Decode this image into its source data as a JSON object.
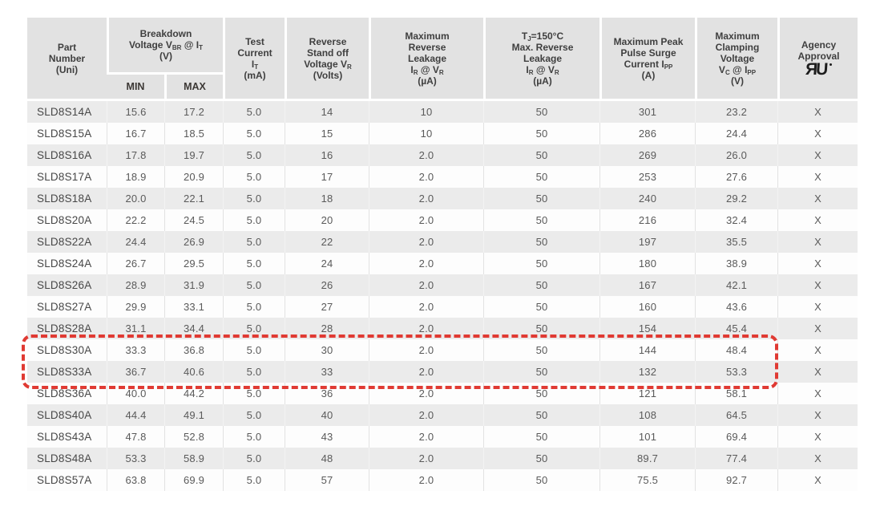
{
  "table": {
    "column_ids": [
      "part",
      "min",
      "max",
      "test",
      "standoff",
      "leak",
      "leak150",
      "surge",
      "clamp",
      "agency"
    ],
    "header": {
      "part": [
        [
          {
            "t": "Part"
          }
        ],
        [
          {
            "t": "Number"
          }
        ],
        [
          {
            "t": "(Uni)"
          }
        ]
      ],
      "breakdown": [
        [
          {
            "t": "Breakdown"
          }
        ],
        [
          {
            "t": "Voltage V"
          },
          {
            "t": "BR",
            "sub": true
          },
          {
            "t": " @ I"
          },
          {
            "t": "T",
            "sub": true
          }
        ],
        [
          {
            "t": "(V)"
          }
        ]
      ],
      "min": "MIN",
      "max": "MAX",
      "test": [
        [
          {
            "t": "Test"
          }
        ],
        [
          {
            "t": "Current"
          }
        ],
        [
          {
            "t": "I"
          },
          {
            "t": "T",
            "sub": true
          }
        ],
        [
          {
            "t": "(mA)"
          }
        ]
      ],
      "standoff": [
        [
          {
            "t": "Reverse"
          }
        ],
        [
          {
            "t": "Stand off"
          }
        ],
        [
          {
            "t": "Voltage V"
          },
          {
            "t": "R",
            "sub": true
          }
        ],
        [
          {
            "t": "(Volts)"
          }
        ]
      ],
      "leak": [
        [
          {
            "t": "Maximum"
          }
        ],
        [
          {
            "t": "Reverse"
          }
        ],
        [
          {
            "t": "Leakage"
          }
        ],
        [
          {
            "t": "I"
          },
          {
            "t": "R",
            "sub": true
          },
          {
            "t": " @ V"
          },
          {
            "t": "R",
            "sub": true
          }
        ],
        [
          {
            "t": "(µA)"
          }
        ]
      ],
      "leak150": [
        [
          {
            "t": "T"
          },
          {
            "t": "J",
            "sub": true
          },
          {
            "t": "=150°C"
          }
        ],
        [
          {
            "t": "Max. Reverse"
          }
        ],
        [
          {
            "t": "Leakage"
          }
        ],
        [
          {
            "t": "I"
          },
          {
            "t": "R",
            "sub": true
          },
          {
            "t": " @ V"
          },
          {
            "t": "R",
            "sub": true
          }
        ],
        [
          {
            "t": "(µA)"
          }
        ]
      ],
      "surge": [
        [
          {
            "t": "Maximum Peak"
          }
        ],
        [
          {
            "t": "Pulse Surge"
          }
        ],
        [
          {
            "t": "Current I"
          },
          {
            "t": "PP",
            "sub": true
          }
        ],
        [
          {
            "t": "(A)"
          }
        ]
      ],
      "clamp": [
        [
          {
            "t": "Maximum"
          }
        ],
        [
          {
            "t": "Clamping"
          }
        ],
        [
          {
            "t": "Voltage"
          }
        ],
        [
          {
            "t": "V"
          },
          {
            "t": "C",
            "sub": true
          },
          {
            "t": " @ I"
          },
          {
            "t": "PP",
            "sub": true
          }
        ],
        [
          {
            "t": "(V)"
          }
        ]
      ],
      "agency": [
        [
          {
            "t": "Agency"
          }
        ],
        [
          {
            "t": "Approval"
          }
        ]
      ],
      "agency_logo": "ЯU"
    },
    "rows": [
      [
        "SLD8S14A",
        "15.6",
        "17.2",
        "5.0",
        "14",
        "10",
        "50",
        "301",
        "23.2",
        "X"
      ],
      [
        "SLD8S15A",
        "16.7",
        "18.5",
        "5.0",
        "15",
        "10",
        "50",
        "286",
        "24.4",
        "X"
      ],
      [
        "SLD8S16A",
        "17.8",
        "19.7",
        "5.0",
        "16",
        "2.0",
        "50",
        "269",
        "26.0",
        "X"
      ],
      [
        "SLD8S17A",
        "18.9",
        "20.9",
        "5.0",
        "17",
        "2.0",
        "50",
        "253",
        "27.6",
        "X"
      ],
      [
        "SLD8S18A",
        "20.0",
        "22.1",
        "5.0",
        "18",
        "2.0",
        "50",
        "240",
        "29.2",
        "X"
      ],
      [
        "SLD8S20A",
        "22.2",
        "24.5",
        "5.0",
        "20",
        "2.0",
        "50",
        "216",
        "32.4",
        "X"
      ],
      [
        "SLD8S22A",
        "24.4",
        "26.9",
        "5.0",
        "22",
        "2.0",
        "50",
        "197",
        "35.5",
        "X"
      ],
      [
        "SLD8S24A",
        "26.7",
        "29.5",
        "5.0",
        "24",
        "2.0",
        "50",
        "180",
        "38.9",
        "X"
      ],
      [
        "SLD8S26A",
        "28.9",
        "31.9",
        "5.0",
        "26",
        "2.0",
        "50",
        "167",
        "42.1",
        "X"
      ],
      [
        "SLD8S27A",
        "29.9",
        "33.1",
        "5.0",
        "27",
        "2.0",
        "50",
        "160",
        "43.6",
        "X"
      ],
      [
        "SLD8S28A",
        "31.1",
        "34.4",
        "5.0",
        "28",
        "2.0",
        "50",
        "154",
        "45.4",
        "X"
      ],
      [
        "SLD8S30A",
        "33.3",
        "36.8",
        "5.0",
        "30",
        "2.0",
        "50",
        "144",
        "48.4",
        "X"
      ],
      [
        "SLD8S33A",
        "36.7",
        "40.6",
        "5.0",
        "33",
        "2.0",
        "50",
        "132",
        "53.3",
        "X"
      ],
      [
        "SLD8S36A",
        "40.0",
        "44.2",
        "5.0",
        "36",
        "2.0",
        "50",
        "121",
        "58.1",
        "X"
      ],
      [
        "SLD8S40A",
        "44.4",
        "49.1",
        "5.0",
        "40",
        "2.0",
        "50",
        "108",
        "64.5",
        "X"
      ],
      [
        "SLD8S43A",
        "47.8",
        "52.8",
        "5.0",
        "43",
        "2.0",
        "50",
        "101",
        "69.4",
        "X"
      ],
      [
        "SLD8S48A",
        "53.3",
        "58.9",
        "5.0",
        "48",
        "2.0",
        "50",
        "89.7",
        "77.4",
        "X"
      ],
      [
        "SLD8S57A",
        "63.8",
        "69.9",
        "5.0",
        "57",
        "2.0",
        "50",
        "75.5",
        "92.7",
        "X"
      ]
    ],
    "highlight": {
      "rows": [
        "SLD8S30A",
        "SLD8S33A"
      ],
      "color": "#e03a33"
    }
  }
}
